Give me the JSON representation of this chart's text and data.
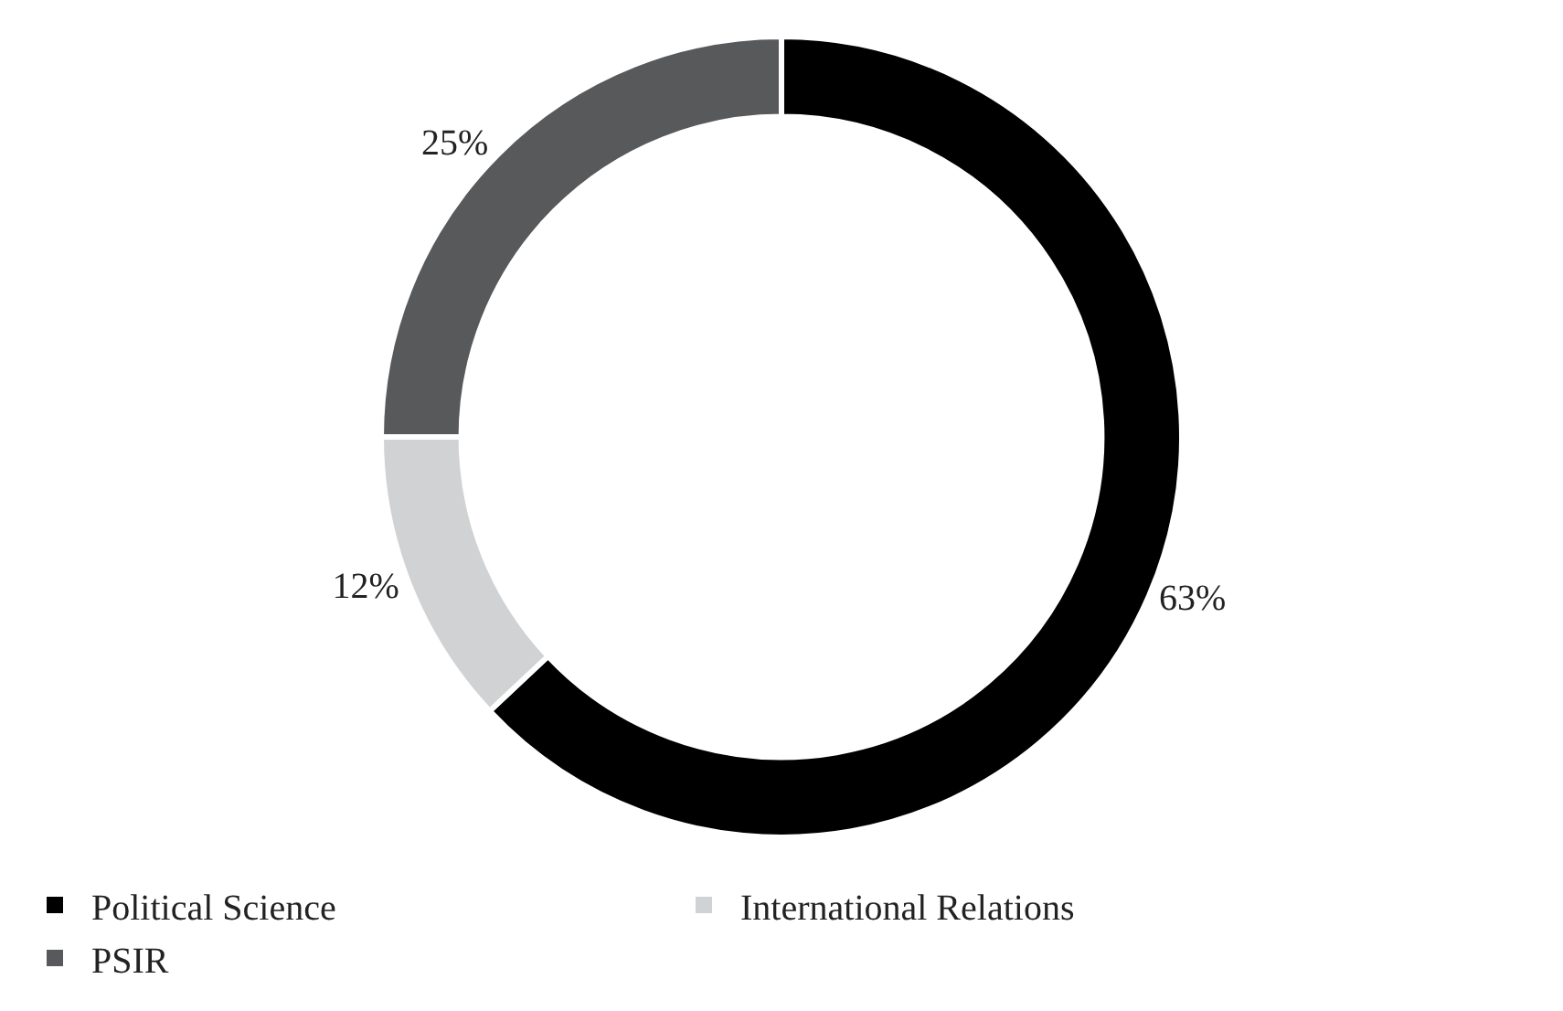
{
  "chart_data": {
    "type": "donut",
    "categories": [
      "Political Science",
      "International Relations",
      "PSIR"
    ],
    "values": [
      63,
      12,
      25
    ],
    "value_labels": [
      "63%",
      "12%",
      "25%"
    ],
    "colors": [
      "#000000",
      "#d1d2d4",
      "#58595b"
    ],
    "legend": "bottom"
  }
}
